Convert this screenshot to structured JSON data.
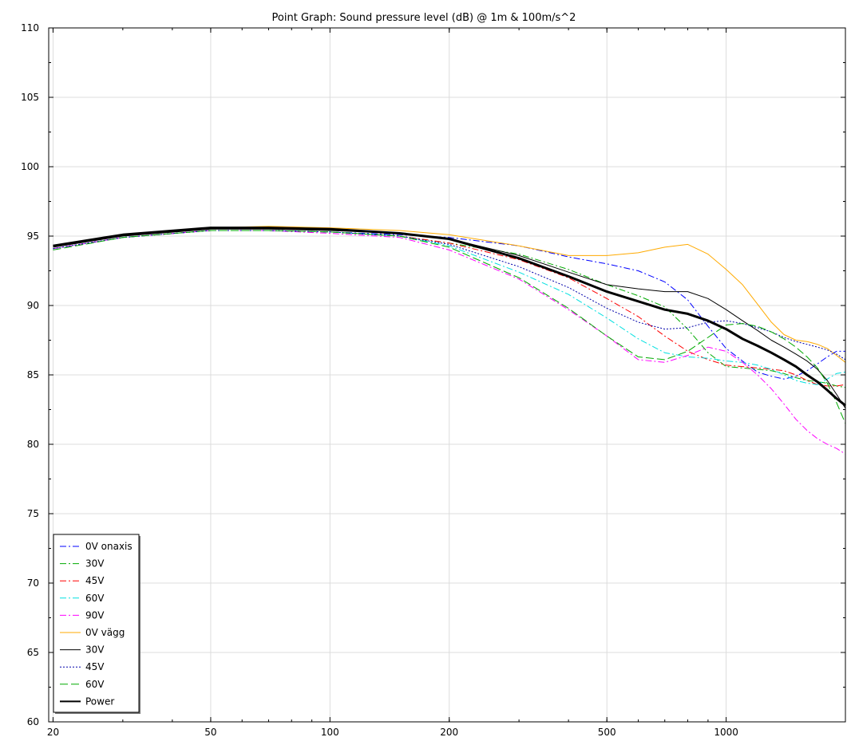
{
  "chart_data": {
    "type": "line",
    "title": "Point Graph: Sound pressure level (dB) @ 1m & 100m/s^2",
    "xlabel": "",
    "ylabel": "",
    "x_scale": "log",
    "xlim": [
      19.5,
      2000
    ],
    "ylim": [
      60,
      110
    ],
    "x_ticks": [
      20,
      50,
      100,
      200,
      500,
      1000
    ],
    "x_tick_labels": [
      "20",
      "50",
      "100",
      "200",
      "500",
      "1000"
    ],
    "y_ticks": [
      60,
      65,
      70,
      75,
      80,
      85,
      90,
      95,
      100,
      105,
      110
    ],
    "y_tick_labels": [
      "60",
      "65",
      "70",
      "75",
      "80",
      "85",
      "90",
      "95",
      "100",
      "105",
      "110"
    ],
    "grid": true,
    "legend_position": "bottom-left",
    "series": [
      {
        "name": "0V onaxis",
        "color": "#0000ff",
        "dash": "dashdot",
        "width": 1,
        "x": [
          20,
          30,
          50,
          70,
          100,
          150,
          200,
          300,
          400,
          500,
          600,
          700,
          800,
          900,
          1000,
          1100,
          1200,
          1300,
          1400,
          1500,
          1600,
          1700,
          1800,
          1900,
          2000
        ],
        "y": [
          94.1,
          94.9,
          95.4,
          95.4,
          95.3,
          95.1,
          94.9,
          94.3,
          93.5,
          93.0,
          92.5,
          91.7,
          90.4,
          88.5,
          86.9,
          86.0,
          85.2,
          84.9,
          84.7,
          84.9,
          85.3,
          85.8,
          86.3,
          86.7,
          86.7
        ]
      },
      {
        "name": "30V",
        "color": "#00aa00",
        "dash": "dashdot",
        "width": 1,
        "x": [
          20,
          30,
          50,
          70,
          100,
          150,
          200,
          300,
          400,
          500,
          600,
          700,
          800,
          900,
          1000,
          1100,
          1200,
          1300,
          1400,
          1500,
          1600,
          1700,
          1800,
          1900,
          2000
        ],
        "y": [
          94.1,
          94.9,
          95.4,
          95.4,
          95.3,
          95.0,
          94.5,
          93.7,
          92.6,
          91.5,
          90.7,
          89.9,
          88.3,
          86.6,
          85.6,
          85.5,
          85.4,
          85.3,
          85.1,
          84.8,
          84.6,
          84.5,
          84.4,
          84.2,
          84.1
        ]
      },
      {
        "name": "45V",
        "color": "#ff0000",
        "dash": "dashdot",
        "width": 1,
        "x": [
          20,
          30,
          50,
          70,
          100,
          150,
          200,
          300,
          400,
          500,
          600,
          700,
          800,
          900,
          1000,
          1100,
          1200,
          1300,
          1400,
          1500,
          1600,
          1700,
          1800,
          1900,
          2000
        ],
        "y": [
          94.1,
          94.9,
          95.4,
          95.4,
          95.3,
          95.0,
          94.5,
          93.3,
          92.0,
          90.5,
          89.2,
          87.8,
          86.7,
          86.1,
          85.7,
          85.6,
          85.5,
          85.4,
          85.3,
          85.0,
          84.6,
          84.3,
          84.2,
          84.2,
          84.3
        ]
      },
      {
        "name": "60V",
        "color": "#00e0e0",
        "dash": "dashdot",
        "width": 1,
        "x": [
          20,
          30,
          50,
          70,
          100,
          150,
          200,
          300,
          400,
          500,
          600,
          700,
          800,
          900,
          1000,
          1100,
          1200,
          1300,
          1400,
          1500,
          1600,
          1700,
          1800,
          1900,
          2000
        ],
        "y": [
          94.1,
          94.9,
          95.4,
          95.4,
          95.3,
          95.0,
          94.3,
          92.4,
          90.8,
          89.1,
          87.6,
          86.6,
          86.3,
          86.2,
          86.0,
          85.9,
          85.7,
          85.4,
          85.0,
          84.6,
          84.4,
          84.3,
          84.7,
          85.1,
          85.2
        ]
      },
      {
        "name": "90V",
        "color": "#ff00ff",
        "dash": "dashdot",
        "width": 1,
        "x": [
          20,
          30,
          50,
          70,
          100,
          150,
          200,
          300,
          400,
          500,
          600,
          700,
          800,
          900,
          1000,
          1100,
          1200,
          1300,
          1400,
          1500,
          1600,
          1700,
          1800,
          1900,
          2000
        ],
        "y": [
          94.1,
          94.9,
          95.4,
          95.4,
          95.2,
          94.9,
          94.0,
          91.9,
          89.7,
          87.8,
          86.1,
          85.9,
          86.4,
          87.0,
          86.7,
          85.9,
          85.0,
          84.0,
          82.9,
          81.8,
          81.0,
          80.4,
          80.0,
          79.7,
          79.3
        ]
      },
      {
        "name": "0V vägg",
        "color": "#ffaa00",
        "dash": "solid",
        "width": 1,
        "x": [
          20,
          30,
          50,
          70,
          100,
          150,
          200,
          300,
          400,
          500,
          600,
          700,
          800,
          900,
          1000,
          1100,
          1200,
          1300,
          1400,
          1500,
          1600,
          1700,
          1800,
          1900,
          2000
        ],
        "y": [
          94.3,
          95.1,
          95.6,
          95.7,
          95.6,
          95.4,
          95.1,
          94.3,
          93.6,
          93.6,
          93.8,
          94.2,
          94.4,
          93.7,
          92.6,
          91.5,
          90.1,
          88.8,
          87.9,
          87.5,
          87.4,
          87.2,
          86.9,
          86.4,
          85.9
        ]
      },
      {
        "name": "30V",
        "color": "#000000",
        "dash": "solid",
        "width": 1,
        "x": [
          20,
          30,
          50,
          70,
          100,
          150,
          200,
          300,
          400,
          500,
          600,
          700,
          800,
          900,
          1000,
          1100,
          1200,
          1300,
          1400,
          1500,
          1600,
          1700,
          1800,
          1900,
          2000
        ],
        "y": [
          94.2,
          95.0,
          95.5,
          95.5,
          95.4,
          95.2,
          94.8,
          93.6,
          92.4,
          91.5,
          91.2,
          91.0,
          91.0,
          90.5,
          89.7,
          88.9,
          88.2,
          87.5,
          87.0,
          86.5,
          86.0,
          85.4,
          84.6,
          83.6,
          82.6
        ]
      },
      {
        "name": "45V",
        "color": "#0000aa",
        "dash": "dotted",
        "width": 1,
        "x": [
          20,
          30,
          50,
          70,
          100,
          150,
          200,
          300,
          400,
          500,
          600,
          700,
          800,
          900,
          1000,
          1100,
          1200,
          1300,
          1400,
          1500,
          1600,
          1700,
          1800,
          1900,
          2000
        ],
        "y": [
          94.1,
          94.9,
          95.4,
          95.4,
          95.3,
          95.0,
          94.4,
          92.8,
          91.3,
          89.8,
          88.8,
          88.3,
          88.4,
          88.8,
          88.9,
          88.7,
          88.4,
          88.1,
          87.7,
          87.4,
          87.2,
          87.0,
          86.8,
          86.5,
          86.1
        ]
      },
      {
        "name": "60V",
        "color": "#00aa00",
        "dash": "dashed",
        "width": 1,
        "x": [
          20,
          30,
          50,
          70,
          100,
          150,
          200,
          300,
          400,
          500,
          600,
          700,
          800,
          900,
          1000,
          1100,
          1200,
          1300,
          1400,
          1500,
          1600,
          1700,
          1800,
          1900,
          2000
        ],
        "y": [
          94.0,
          94.9,
          95.4,
          95.4,
          95.3,
          95.0,
          94.2,
          92.0,
          89.8,
          87.8,
          86.3,
          86.1,
          86.7,
          87.7,
          88.6,
          88.7,
          88.5,
          88.1,
          87.6,
          87.0,
          86.3,
          85.5,
          84.4,
          83.0,
          81.5
        ]
      },
      {
        "name": "Power",
        "color": "#000000",
        "dash": "solid",
        "width": 3,
        "x": [
          20,
          30,
          50,
          70,
          100,
          150,
          200,
          300,
          400,
          500,
          600,
          700,
          800,
          900,
          1000,
          1100,
          1200,
          1300,
          1400,
          1500,
          1600,
          1700,
          1800,
          1900,
          2000
        ],
        "y": [
          94.3,
          95.1,
          95.6,
          95.6,
          95.5,
          95.2,
          94.8,
          93.4,
          92.1,
          91.0,
          90.3,
          89.7,
          89.4,
          88.9,
          88.3,
          87.6,
          87.1,
          86.6,
          86.1,
          85.6,
          85.0,
          84.5,
          83.9,
          83.3,
          82.8
        ]
      }
    ]
  }
}
